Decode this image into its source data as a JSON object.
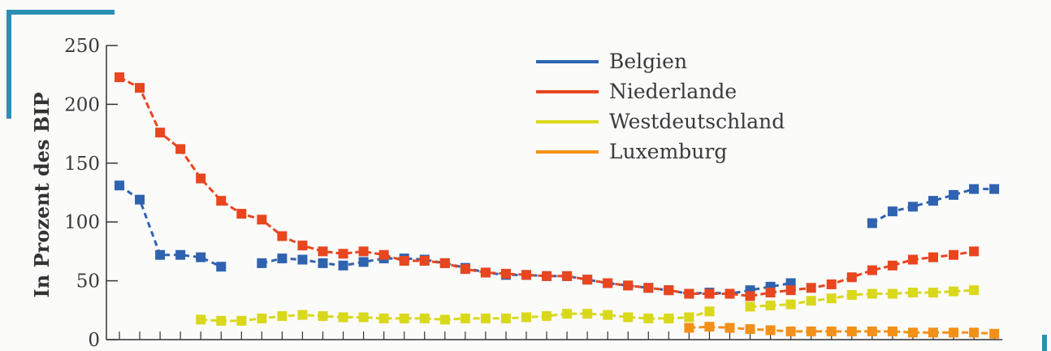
{
  "chart_data": {
    "type": "line",
    "ylabel": "In Prozent des BIP",
    "xlabel": "",
    "title": "",
    "ylim": [
      0,
      250
    ],
    "yticks": [
      0,
      50,
      100,
      150,
      200,
      250
    ],
    "x": [
      1,
      2,
      3,
      4,
      5,
      6,
      7,
      8,
      9,
      10,
      11,
      12,
      13,
      14,
      15,
      16,
      17,
      18,
      19,
      20,
      21,
      22,
      23,
      24,
      25,
      26,
      27,
      28,
      29,
      30,
      31,
      32,
      33,
      34,
      35,
      36,
      37,
      38,
      39,
      40,
      41,
      42,
      43,
      44
    ],
    "legend_position": "top-right",
    "series": [
      {
        "name": "Belgien",
        "color": "#2f63b0",
        "values": [
          131,
          119,
          72,
          72,
          70,
          62,
          null,
          65,
          69,
          68,
          65,
          63,
          66,
          69,
          69,
          68,
          65,
          61,
          57,
          55,
          55,
          54,
          54,
          51,
          48,
          46,
          44,
          42,
          39,
          40,
          39,
          42,
          45,
          48,
          null,
          null,
          null,
          99,
          109,
          113,
          118,
          123,
          128,
          128
        ]
      },
      {
        "name": "Niederlande",
        "color": "#e8461f",
        "values": [
          223,
          214,
          176,
          162,
          137,
          118,
          107,
          102,
          88,
          80,
          75,
          73,
          75,
          72,
          67,
          67,
          65,
          60,
          57,
          56,
          55,
          54,
          54,
          51,
          48,
          46,
          44,
          42,
          39,
          39,
          39,
          37,
          40,
          42,
          44,
          47,
          53,
          59,
          63,
          68,
          70,
          72,
          75,
          null
        ]
      },
      {
        "name": "Westdeutschland",
        "color": "#d9d81c",
        "values": [
          null,
          null,
          null,
          null,
          17,
          16,
          16,
          18,
          20,
          21,
          20,
          19,
          19,
          18,
          18,
          18,
          17,
          18,
          18,
          18,
          19,
          20,
          22,
          22,
          21,
          19,
          18,
          18,
          19,
          24,
          null,
          28,
          29,
          30,
          33,
          35,
          38,
          39,
          39,
          40,
          40,
          41,
          42,
          null
        ]
      },
      {
        "name": "Luxemburg",
        "color": "#f39018",
        "values": [
          null,
          null,
          null,
          null,
          null,
          null,
          null,
          null,
          null,
          null,
          null,
          null,
          null,
          null,
          null,
          null,
          null,
          null,
          null,
          null,
          null,
          null,
          null,
          null,
          null,
          null,
          null,
          null,
          10,
          11,
          10,
          9,
          8,
          7,
          7,
          7,
          7,
          7,
          7,
          6,
          6,
          6,
          6,
          5
        ]
      }
    ]
  }
}
